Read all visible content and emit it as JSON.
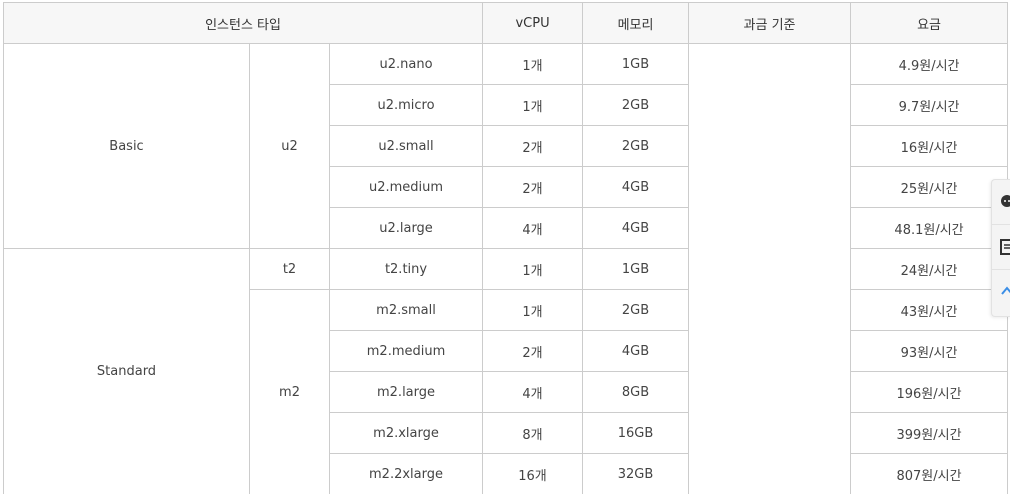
{
  "table": {
    "headers": {
      "instance_type": "인스턴스 타입",
      "vcpu": "vCPU",
      "memory": "메모리",
      "billing": "과금 기준",
      "price": "요금"
    },
    "groups": {
      "basic": "Basic",
      "standard": "Standard"
    },
    "families": {
      "u2": "u2",
      "t2": "t2",
      "m2": "m2"
    },
    "billing_value": "",
    "rows": [
      {
        "name": "u2.nano",
        "vcpu": "1개",
        "memory": "1GB",
        "price": "4.9원/시간"
      },
      {
        "name": "u2.micro",
        "vcpu": "1개",
        "memory": "2GB",
        "price": "9.7원/시간"
      },
      {
        "name": "u2.small",
        "vcpu": "2개",
        "memory": "2GB",
        "price": "16원/시간"
      },
      {
        "name": "u2.medium",
        "vcpu": "2개",
        "memory": "4GB",
        "price": "25원/시간"
      },
      {
        "name": "u2.large",
        "vcpu": "4개",
        "memory": "4GB",
        "price": "48.1원/시간"
      },
      {
        "name": "t2.tiny",
        "vcpu": "1개",
        "memory": "1GB",
        "price": "24원/시간"
      },
      {
        "name": "m2.small",
        "vcpu": "1개",
        "memory": "2GB",
        "price": "43원/시간"
      },
      {
        "name": "m2.medium",
        "vcpu": "2개",
        "memory": "4GB",
        "price": "93원/시간"
      },
      {
        "name": "m2.large",
        "vcpu": "4개",
        "memory": "8GB",
        "price": "196원/시간"
      },
      {
        "name": "m2.xlarge",
        "vcpu": "8개",
        "memory": "16GB",
        "price": "399원/시간"
      },
      {
        "name": "m2.2xlarge",
        "vcpu": "16개",
        "memory": "32GB",
        "price": "807원/시간"
      }
    ]
  },
  "side_widget": {
    "icons": [
      "chat-icon",
      "document-icon",
      "arrow-up-icon"
    ],
    "accent": "#3a8ee6",
    "icon_color": "#333333"
  }
}
